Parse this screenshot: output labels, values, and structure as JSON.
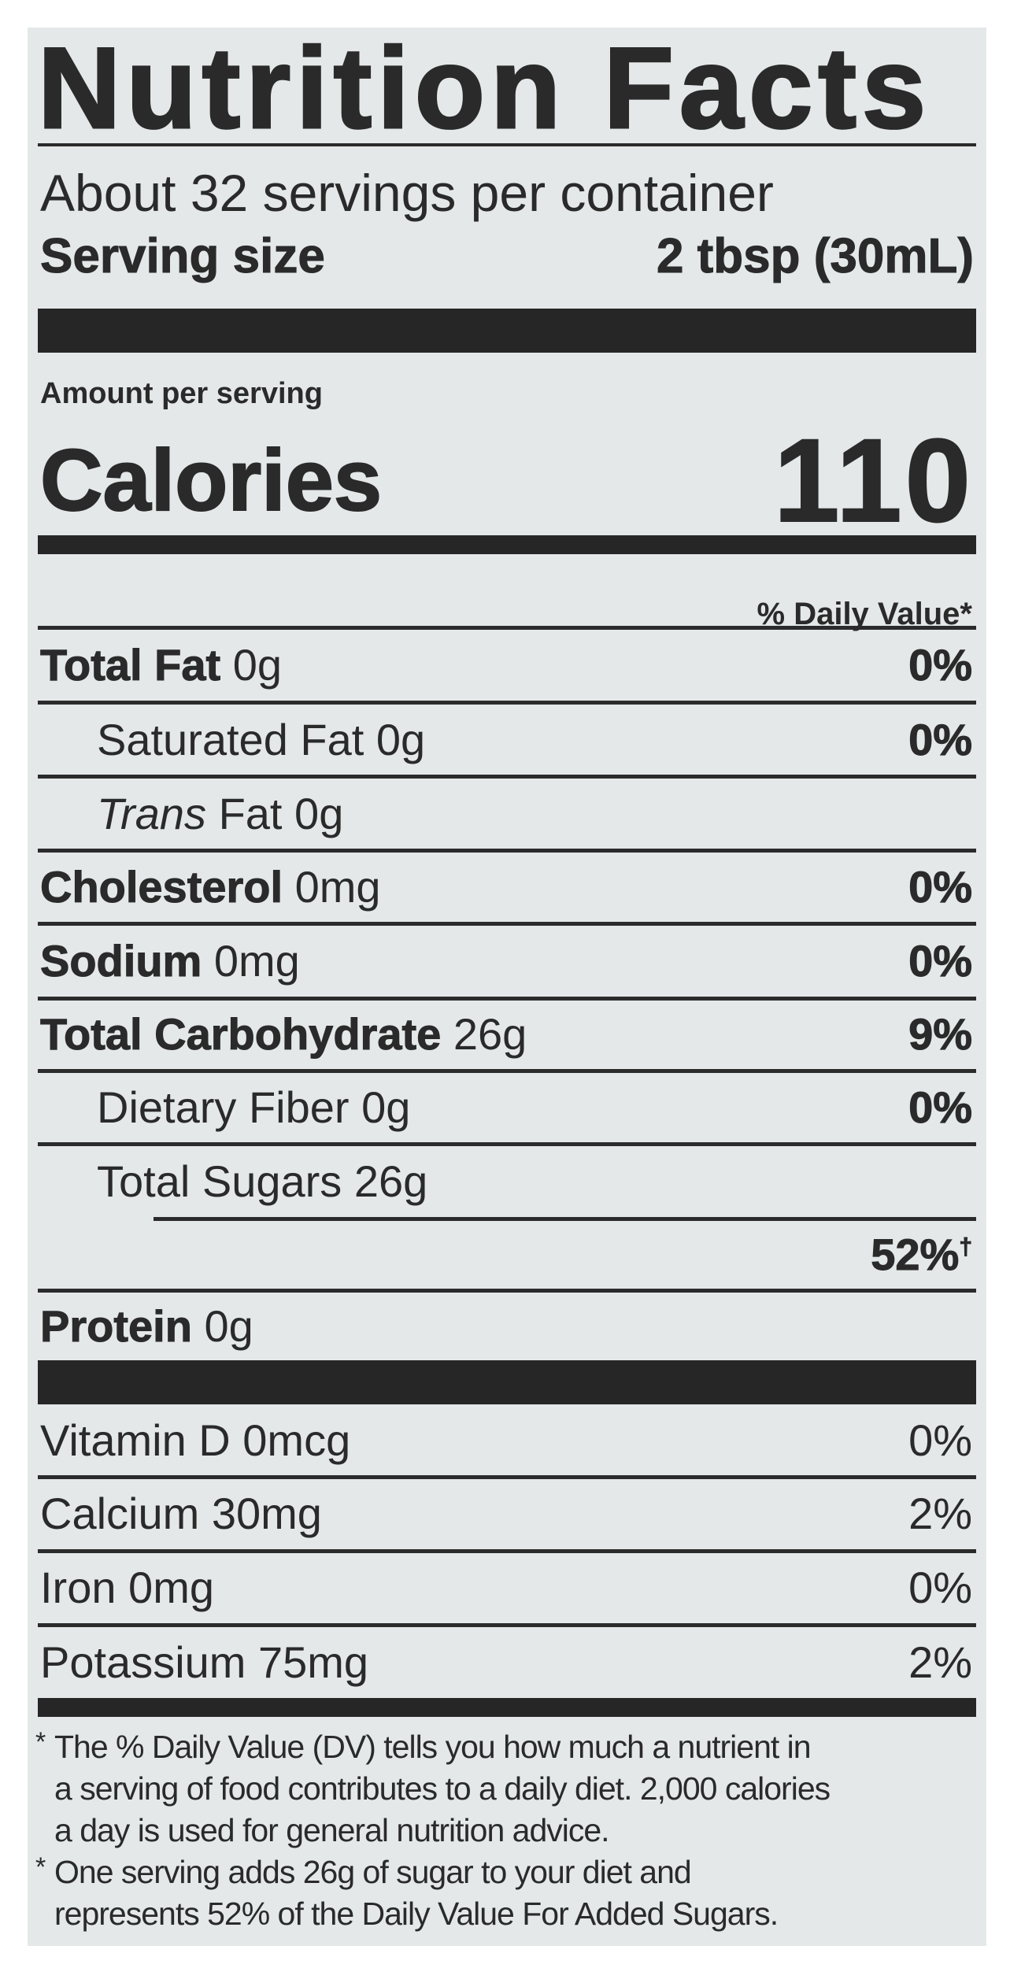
{
  "title": "Nutrition Facts",
  "servings_per_container": "About 32 servings per container",
  "serving_size": {
    "label": "Serving size",
    "value": "2 tbsp (30mL)"
  },
  "amount_per_serving": "Amount per serving",
  "calories": {
    "label": "Calories",
    "value": "110"
  },
  "daily_value_header": "% Daily Value*",
  "nutrients": [
    {
      "name": "Total Fat",
      "amount": "0g",
      "dv": "0%"
    },
    {
      "name": "Saturated Fat",
      "amount": "0g",
      "dv": "0%"
    },
    {
      "name_italic": "Trans",
      "name": "Fat",
      "amount": "0g",
      "dv": ""
    },
    {
      "name": "Cholesterol",
      "amount": "0mg",
      "dv": "0%"
    },
    {
      "name": "Sodium",
      "amount": "0mg",
      "dv": "0%"
    },
    {
      "name": "Total Carbohydrate",
      "amount": "26g",
      "dv": "9%"
    },
    {
      "name": "Dietary Fiber",
      "amount": "0g",
      "dv": "0%"
    },
    {
      "name": "Total Sugars",
      "amount": "26g",
      "dv": ""
    },
    {
      "name": "",
      "amount": "",
      "dv": "52%",
      "mark": "†"
    },
    {
      "name": "Protein",
      "amount": "0g",
      "dv": ""
    }
  ],
  "vitamins": [
    {
      "text": "Vitamin D 0mcg",
      "dv": "0%"
    },
    {
      "text": "Calcium 30mg",
      "dv": "2%"
    },
    {
      "text": "Iron 0mg",
      "dv": "0%"
    },
    {
      "text": "Potassium 75mg",
      "dv": "2%"
    }
  ],
  "footnotes": [
    {
      "marker": "*",
      "lines": [
        "The % Daily Value (DV) tells you how much a nutrient in",
        "a serving of food contributes to a daily diet. 2,000 calories",
        "a day is used for general nutrition advice."
      ]
    },
    {
      "marker": "*",
      "lines": [
        "One serving adds 26g of sugar to your diet and",
        "represents 52% of the Daily Value For Added Sugars."
      ]
    }
  ]
}
